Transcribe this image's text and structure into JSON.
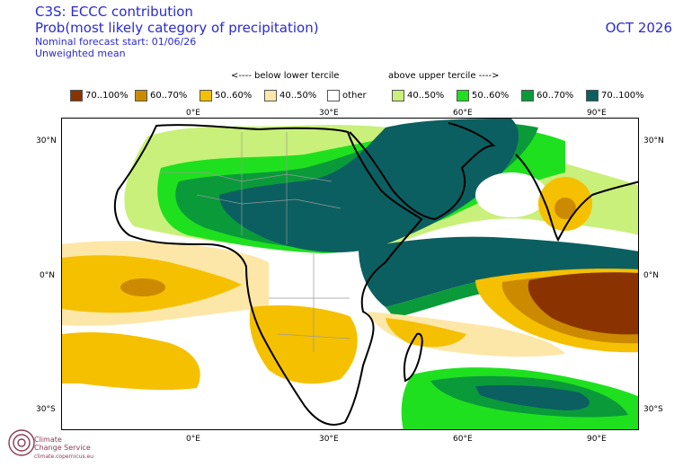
{
  "header": {
    "line1": "C3S: ECCC contribution",
    "line2": "Prob(most likely category of precipitation)",
    "line3": "Nominal forecast start: 01/06/26",
    "line4": "Unweighted mean",
    "month": "OCT 2026"
  },
  "legend": {
    "below_label": "<---- below lower tercile",
    "above_label": "above upper tercile ---->",
    "items": [
      {
        "label": "70..100%",
        "color": "#8b3300"
      },
      {
        "label": "60..70%",
        "color": "#cc8a00"
      },
      {
        "label": "50..60%",
        "color": "#f5c000"
      },
      {
        "label": "40..50%",
        "color": "#fde7a8"
      },
      {
        "label": "other",
        "color": "#ffffff"
      },
      {
        "label": "40..50%",
        "color": "#c9f07a"
      },
      {
        "label": "50..60%",
        "color": "#1fe01f"
      },
      {
        "label": "60..70%",
        "color": "#0a9a3a"
      },
      {
        "label": "70..100%",
        "color": "#0b5f60"
      }
    ]
  },
  "axes": {
    "top_lon": [
      "0°E",
      "30°E",
      "60°E",
      "90°E"
    ],
    "bottom_lon": [
      "0°E",
      "30°E",
      "60°E",
      "90°E"
    ],
    "left_lat": [
      "30°N",
      "0°N",
      "30°S"
    ],
    "right_lat": [
      "30°N",
      "0°N",
      "30°S"
    ]
  },
  "logo": {
    "name_line1": "Climate",
    "name_line2": "Change Service",
    "url": "climate.copernicus.eu"
  }
}
